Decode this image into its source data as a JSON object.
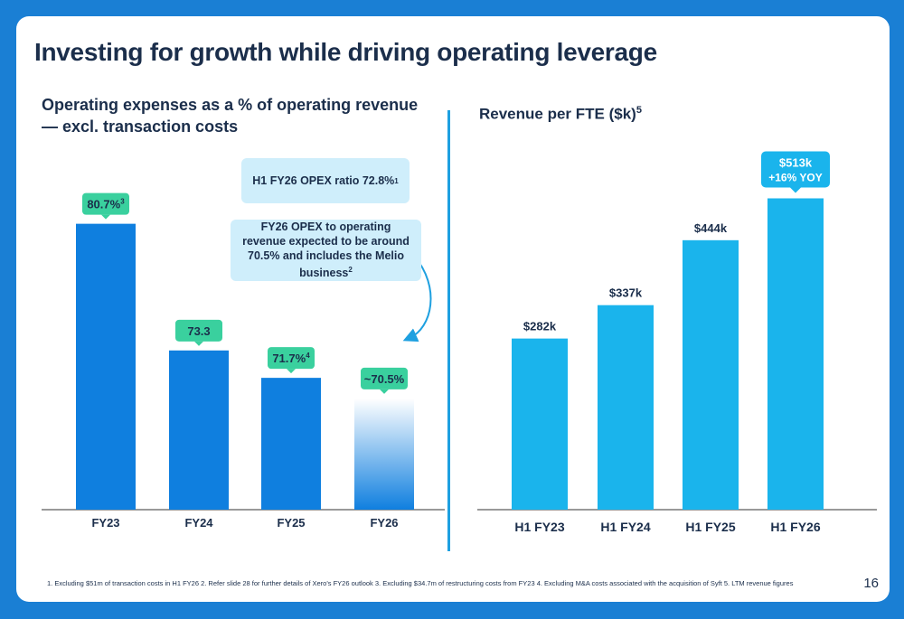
{
  "title": "Investing for growth while driving operating leverage",
  "left_subtitle": "Operating expenses as a % of operating revenue — excl. transaction costs",
  "right_subtitle": "Revenue per FTE ($k)",
  "right_subtitle_sup": "5",
  "callout_h1_opex": "H1 FY26 OPEX ratio 72.8%",
  "callout_h1_opex_sup": "1",
  "callout_fy26_expected": "FY26 OPEX to operating revenue expected to be around 70.5% and includes the Melio business",
  "callout_fy26_expected_sup": "2",
  "footnote": "1. Excluding $51m of transaction costs in H1 FY26 2. Refer slide 28 for further details of Xero's FY26 outlook 3. Excluding $34.7m of restructuring costs from FY23 4. Excluding M&A costs associated with the acquisition of Syft 5. LTM revenue figures",
  "page_number": "16",
  "colors": {
    "bar_dark": "#0f7fdf",
    "bar_light": "#1ab4ec",
    "label_green": "#3ad09e",
    "text": "#1b2e4b",
    "accent": "#1ea0e0",
    "callout_bg": "#cfeefb"
  },
  "chart_data": [
    {
      "type": "bar",
      "title": "Operating expenses as a % of operating revenue — excl. transaction costs",
      "categories": [
        "FY23",
        "FY24",
        "FY25",
        "FY26"
      ],
      "values": [
        80.7,
        73.3,
        71.7,
        70.5
      ],
      "value_labels": [
        "80.7%",
        "73.3",
        "71.7%",
        "~70.5%"
      ],
      "label_superscripts": [
        "3",
        "",
        "4",
        ""
      ],
      "unit": "%",
      "projected": [
        false,
        false,
        false,
        true
      ],
      "ylim": [
        64,
        82
      ],
      "grid": false
    },
    {
      "type": "bar",
      "title": "Revenue per FTE ($k)",
      "categories": [
        "H1 FY23",
        "H1 FY24",
        "H1 FY25",
        "H1 FY26"
      ],
      "values": [
        282,
        337,
        444,
        513
      ],
      "value_labels": [
        "$282k",
        "$337k",
        "$444k",
        "$513k"
      ],
      "extra_label": "+16% YOY",
      "unit": "$k",
      "ylim": [
        0,
        545
      ],
      "grid": false
    }
  ]
}
